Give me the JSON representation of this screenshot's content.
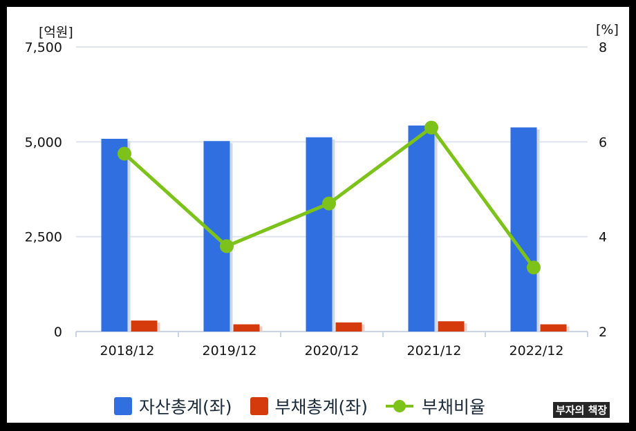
{
  "chart_data": {
    "type": "bar",
    "categories": [
      "2018/12",
      "2019/12",
      "2020/12",
      "2021/12",
      "2022/12"
    ],
    "series": [
      {
        "name": "자산총계(좌)",
        "type": "bar",
        "axis": "left",
        "color": "#2f6fe0",
        "values": [
          5080,
          5020,
          5120,
          5430,
          5380
        ]
      },
      {
        "name": "부채총계(좌)",
        "type": "bar",
        "axis": "left",
        "color": "#d43a0b",
        "values": [
          290,
          190,
          240,
          270,
          190
        ]
      },
      {
        "name": "부채비율",
        "type": "line",
        "axis": "right",
        "color": "#7cc21a",
        "values": [
          5.75,
          3.8,
          4.7,
          6.3,
          3.35
        ]
      }
    ],
    "y_left": {
      "unit": "[억원]",
      "ylim": [
        0,
        7500
      ],
      "ticks": [
        "0",
        "2,500",
        "5,000",
        "7,500"
      ]
    },
    "y_right": {
      "unit": "[%]",
      "ylim": [
        2,
        8
      ],
      "ticks": [
        "2",
        "4",
        "6",
        "8"
      ]
    },
    "grid": true,
    "legend": "bottom"
  },
  "watermark": "부자의 책장"
}
